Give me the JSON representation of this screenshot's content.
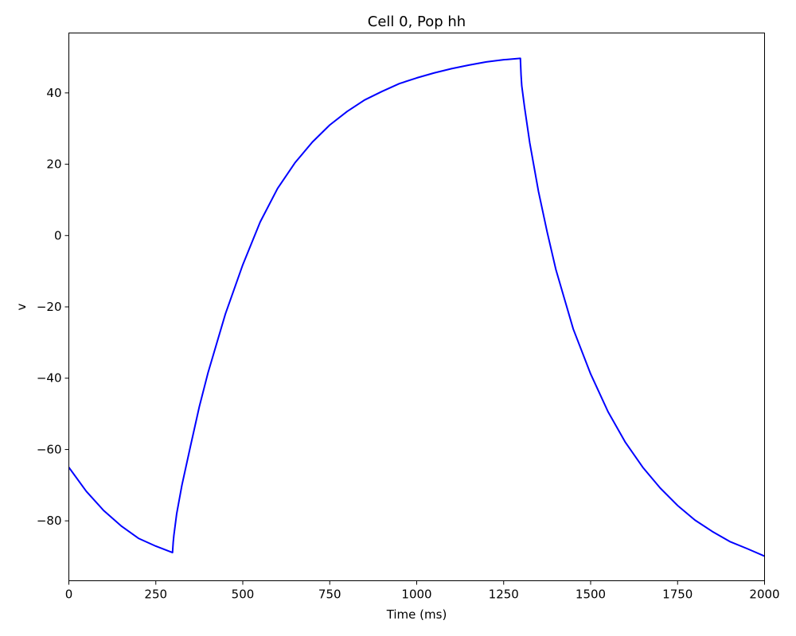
{
  "chart_data": {
    "type": "line",
    "title": "Cell 0, Pop hh",
    "xlabel": "Time (ms)",
    "ylabel": "v",
    "xlim": [
      0,
      2000
    ],
    "ylim": [
      -96.8,
      56.8
    ],
    "x_ticks": [
      0,
      250,
      500,
      750,
      1000,
      1250,
      1500,
      1750,
      2000
    ],
    "y_ticks": [
      -80,
      -60,
      -40,
      -20,
      0,
      20,
      40
    ],
    "x_tick_labels": [
      "0",
      "250",
      "500",
      "750",
      "1000",
      "1250",
      "1500",
      "1750",
      "2000"
    ],
    "y_tick_labels": [
      "−80",
      "−60",
      "−40",
      "−20",
      "0",
      "20",
      "40"
    ],
    "grid": false,
    "series": [
      {
        "color": "#0000ff",
        "x": [
          0,
          50,
          100,
          150,
          200,
          250,
          298,
          300,
          302,
          310,
          325,
          350,
          375,
          400,
          450,
          500,
          550,
          600,
          650,
          700,
          750,
          800,
          850,
          900,
          950,
          1000,
          1050,
          1100,
          1150,
          1200,
          1250,
          1298,
          1300,
          1302,
          1310,
          1325,
          1350,
          1375,
          1400,
          1450,
          1500,
          1550,
          1600,
          1650,
          1700,
          1750,
          1800,
          1850,
          1900,
          1950,
          2000
        ],
        "y": [
          -65,
          -71.7,
          -77.1,
          -81.4,
          -84.9,
          -87.1,
          -88.9,
          -86.0,
          -84.0,
          -78.0,
          -70.0,
          -58.9,
          -48.0,
          -38.5,
          -22.0,
          -8.2,
          3.8,
          13.2,
          20.4,
          26.2,
          31.0,
          34.8,
          38.0,
          40.4,
          42.6,
          44.2,
          45.6,
          46.8,
          47.8,
          48.7,
          49.3,
          49.7,
          45.0,
          42.0,
          36.0,
          26.0,
          12.4,
          1.0,
          -9.5,
          -26.2,
          -38.8,
          -49.4,
          -58.0,
          -65.0,
          -70.8,
          -75.7,
          -79.8,
          -83.0,
          -85.8,
          -87.8,
          -89.9
        ]
      }
    ]
  }
}
